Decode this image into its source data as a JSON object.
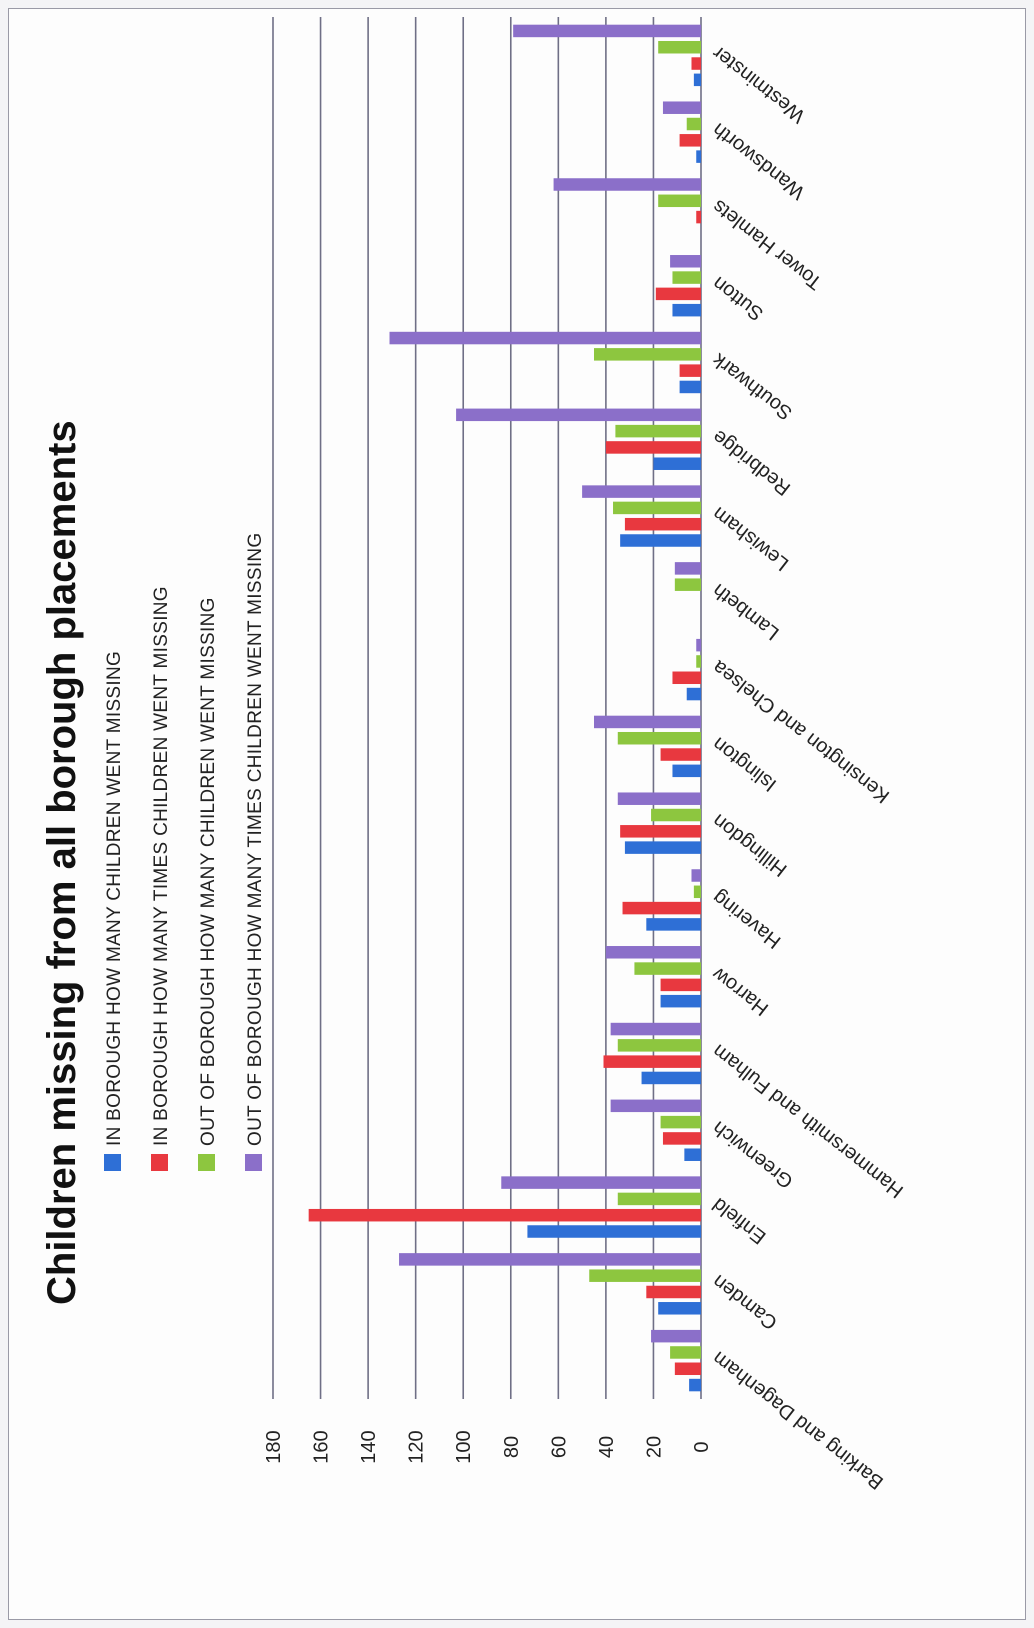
{
  "chart_data": {
    "type": "bar",
    "orientation": "horizontal",
    "title": "Children missing from all borough placements",
    "xlabel": "",
    "ylabel": "",
    "xlim": [
      0,
      180
    ],
    "ticks": [
      0,
      20,
      40,
      60,
      80,
      100,
      120,
      140,
      160,
      180
    ],
    "grid": true,
    "legend_position": "top",
    "categories": [
      "Barking and Dagenham",
      "Camden",
      "Enfield",
      "Greenwich",
      "Hammersmith and Fulham",
      "Harrow",
      "Havering",
      "Hillingdon",
      "Islington",
      "Kensington and Chelsea",
      "Lambeth",
      "Lewisham",
      "Redbridge",
      "Southwark",
      "Sutton",
      "Tower Hamlets",
      "Wandsworth",
      "Westminster"
    ],
    "series": [
      {
        "name": "IN BOROUGH HOW MANY CHILDREN WENT MISSING",
        "color": "#2e6fd6",
        "values": [
          5,
          18,
          73,
          7,
          25,
          17,
          23,
          32,
          12,
          6,
          0,
          34,
          20,
          9,
          12,
          0,
          2,
          3
        ]
      },
      {
        "name": "IN BOROUGH HOW MANY TIMES CHILDREN WENT MISSING",
        "color": "#e8383f",
        "values": [
          11,
          23,
          165,
          16,
          41,
          17,
          33,
          34,
          17,
          12,
          0,
          32,
          40,
          9,
          19,
          2,
          9,
          4
        ]
      },
      {
        "name": "OUT OF BOROUGH HOW MANY CHILDREN WENT MISSING",
        "color": "#8dc63f",
        "values": [
          13,
          47,
          35,
          17,
          35,
          28,
          3,
          21,
          35,
          2,
          11,
          37,
          36,
          45,
          12,
          18,
          6,
          18
        ]
      },
      {
        "name": "OUT OF BOROUGH HOW MANY TIMES CHILDREN WENT MISSING",
        "color": "#8b6fc9",
        "values": [
          21,
          127,
          84,
          38,
          38,
          40,
          4,
          35,
          45,
          2,
          11,
          50,
          103,
          131,
          13,
          62,
          16,
          79
        ]
      }
    ]
  }
}
